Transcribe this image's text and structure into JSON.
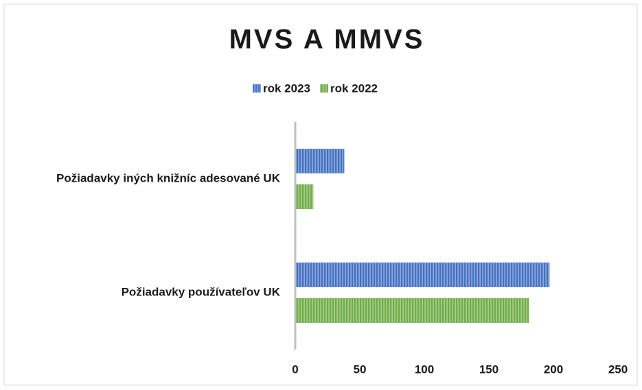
{
  "chart_data": {
    "type": "bar",
    "orientation": "horizontal",
    "title": "MVS A MMVS",
    "categories": [
      "Požiadavky iných knižníc adesované UK",
      "Požiadavky používateľov UK"
    ],
    "series": [
      {
        "name": "rok 2023",
        "color": "#4472c4",
        "values": [
          38,
          197
        ]
      },
      {
        "name": "rok 2022",
        "color": "#70ad47",
        "values": [
          14,
          181
        ]
      }
    ],
    "xlim": [
      0,
      250
    ],
    "xticks": [
      0,
      50,
      100,
      150,
      200,
      250
    ],
    "grid": false,
    "legend": "top"
  }
}
